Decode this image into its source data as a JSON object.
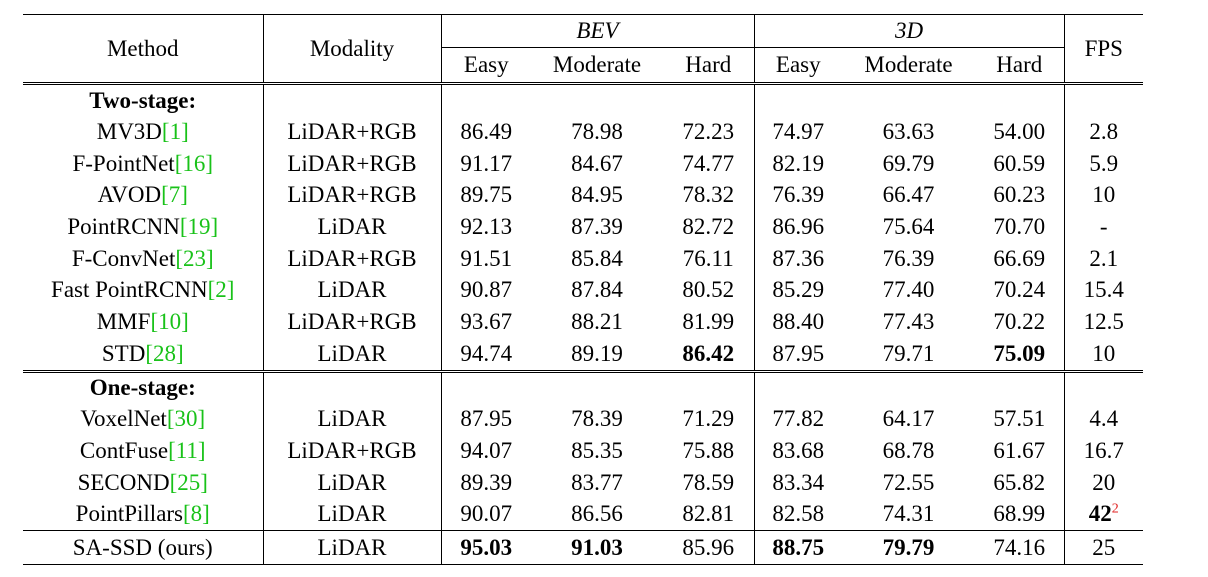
{
  "header": {
    "method": "Method",
    "modality": "Modality",
    "bev": "BEV",
    "three_d": "3D",
    "fps": "FPS",
    "easy": "Easy",
    "moderate": "Moderate",
    "hard": "Hard"
  },
  "two_stage": {
    "label": "Two-stage:",
    "rows": [
      {
        "name": "MV3D",
        "ref": "[1]",
        "modality": "LiDAR+RGB",
        "bev_easy": "86.49",
        "bev_mod": "78.98",
        "bev_hard": "72.23",
        "d3_easy": "74.97",
        "d3_mod": "63.63",
        "d3_hard": "54.00",
        "fps": "2.8"
      },
      {
        "name": "F-PointNet",
        "ref": "[16]",
        "modality": "LiDAR+RGB",
        "bev_easy": "91.17",
        "bev_mod": "84.67",
        "bev_hard": "74.77",
        "d3_easy": "82.19",
        "d3_mod": "69.79",
        "d3_hard": "60.59",
        "fps": "5.9"
      },
      {
        "name": "AVOD",
        "ref": "[7]",
        "modality": "LiDAR+RGB",
        "bev_easy": "89.75",
        "bev_mod": "84.95",
        "bev_hard": "78.32",
        "d3_easy": "76.39",
        "d3_mod": "66.47",
        "d3_hard": "60.23",
        "fps": "10"
      },
      {
        "name": "PointRCNN",
        "ref": "[19]",
        "modality": "LiDAR",
        "bev_easy": "92.13",
        "bev_mod": "87.39",
        "bev_hard": "82.72",
        "d3_easy": "86.96",
        "d3_mod": "75.64",
        "d3_hard": "70.70",
        "fps": "-"
      },
      {
        "name": "F-ConvNet",
        "ref": "[23]",
        "modality": "LiDAR+RGB",
        "bev_easy": "91.51",
        "bev_mod": "85.84",
        "bev_hard": "76.11",
        "d3_easy": "87.36",
        "d3_mod": "76.39",
        "d3_hard": "66.69",
        "fps": "2.1"
      },
      {
        "name": "Fast PointRCNN",
        "ref": "[2]",
        "modality": "LiDAR",
        "bev_easy": "90.87",
        "bev_mod": "87.84",
        "bev_hard": "80.52",
        "d3_easy": "85.29",
        "d3_mod": "77.40",
        "d3_hard": "70.24",
        "fps": "15.4"
      },
      {
        "name": "MMF",
        "ref": "[10]",
        "modality": "LiDAR+RGB",
        "bev_easy": "93.67",
        "bev_mod": "88.21",
        "bev_hard": "81.99",
        "d3_easy": "88.40",
        "d3_mod": "77.43",
        "d3_hard": "70.22",
        "fps": "12.5"
      },
      {
        "name": "STD",
        "ref": "[28]",
        "modality": "LiDAR",
        "bev_easy": "94.74",
        "bev_mod": "89.19",
        "bev_hard": "86.42",
        "d3_easy": "87.95",
        "d3_mod": "79.71",
        "d3_hard": "75.09",
        "fps": "10"
      }
    ]
  },
  "one_stage": {
    "label": "One-stage:",
    "rows": [
      {
        "name": "VoxelNet",
        "ref": "[30]",
        "modality": "LiDAR",
        "bev_easy": "87.95",
        "bev_mod": "78.39",
        "bev_hard": "71.29",
        "d3_easy": "77.82",
        "d3_mod": "64.17",
        "d3_hard": "57.51",
        "fps": "4.4"
      },
      {
        "name": "ContFuse",
        "ref": "[11]",
        "modality": "LiDAR+RGB",
        "bev_easy": "94.07",
        "bev_mod": "85.35",
        "bev_hard": "75.88",
        "d3_easy": "83.68",
        "d3_mod": "68.78",
        "d3_hard": "61.67",
        "fps": "16.7"
      },
      {
        "name": "SECOND",
        "ref": "[25]",
        "modality": "LiDAR",
        "bev_easy": "89.39",
        "bev_mod": "83.77",
        "bev_hard": "78.59",
        "d3_easy": "83.34",
        "d3_mod": "72.55",
        "d3_hard": "65.82",
        "fps": "20"
      },
      {
        "name": "PointPillars",
        "ref": "[8]",
        "modality": "LiDAR",
        "bev_easy": "90.07",
        "bev_mod": "86.56",
        "bev_hard": "82.81",
        "d3_easy": "82.58",
        "d3_mod": "74.31",
        "d3_hard": "68.99",
        "fps": "42",
        "fps_footnote": "2"
      }
    ]
  },
  "ours": {
    "name": "SA-SSD (ours)",
    "modality": "LiDAR",
    "bev_easy": "95.03",
    "bev_mod": "91.03",
    "bev_hard": "85.96",
    "d3_easy": "88.75",
    "d3_mod": "79.79",
    "d3_hard": "74.16",
    "fps": "25"
  }
}
